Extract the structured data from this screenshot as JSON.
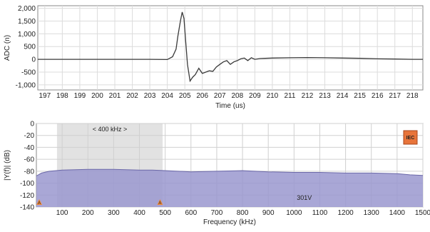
{
  "chart_data": [
    {
      "type": "line",
      "xlabel": "Time (us)",
      "ylabel": "ADC (n)",
      "xlim": [
        196.6,
        218.6
      ],
      "ylim": [
        -1200,
        2100
      ],
      "xticks": [
        197,
        198,
        199,
        200,
        201,
        202,
        203,
        204,
        205,
        206,
        207,
        208,
        209,
        210,
        211,
        212,
        213,
        214,
        215,
        216,
        217,
        218
      ],
      "yticks": [
        -1000,
        -500,
        0,
        500,
        1000,
        1500,
        2000
      ],
      "ytick_labels": [
        "-1,000",
        "-500",
        "0",
        "500",
        "1,000",
        "1,500",
        "2,000"
      ],
      "grid": true,
      "series": [
        {
          "color": "#3a3a3a",
          "x": [
            196.6,
            200,
            203,
            204.0,
            204.3,
            204.5,
            204.6,
            204.75,
            204.85,
            204.95,
            205.05,
            205.15,
            205.3,
            205.45,
            205.6,
            205.8,
            206.0,
            206.2,
            206.4,
            206.6,
            206.8,
            207.0,
            207.2,
            207.4,
            207.6,
            207.8,
            208.0,
            208.2,
            208.4,
            208.6,
            208.8,
            209.0,
            209.3,
            209.6,
            210,
            211,
            212,
            213,
            214,
            215,
            216,
            217,
            218,
            218.6
          ],
          "y": [
            0,
            0,
            0,
            -10,
            100,
            400,
            900,
            1500,
            1850,
            1600,
            700,
            -200,
            -850,
            -700,
            -600,
            -350,
            -550,
            -500,
            -450,
            -470,
            -300,
            -200,
            -100,
            -50,
            -200,
            -100,
            -50,
            20,
            50,
            -50,
            60,
            0,
            30,
            40,
            50,
            60,
            70,
            60,
            50,
            40,
            20,
            10,
            0,
            0
          ]
        }
      ]
    },
    {
      "type": "area",
      "xlabel": "Frequency (kHz)",
      "ylabel": "|Y(f)| (dB)",
      "xlim": [
        0,
        1500
      ],
      "ylim": [
        -140,
        0
      ],
      "xticks": [
        100,
        200,
        300,
        400,
        500,
        600,
        700,
        800,
        900,
        1000,
        1100,
        1200,
        1300,
        1400,
        1500
      ],
      "yticks": [
        0,
        -20,
        -40,
        -60,
        -80,
        -100,
        -120,
        -140
      ],
      "grid": true,
      "highlight_band": {
        "x": [
          80,
          490
        ],
        "label": "< 400 kHz >",
        "label_color": "#b59adb"
      },
      "series": [
        {
          "fill_color": "#9a98cf",
          "line_color": "#6b68a8",
          "x": [
            0,
            20,
            50,
            100,
            200,
            300,
            400,
            450,
            500,
            600,
            700,
            800,
            900,
            1000,
            1100,
            1200,
            1300,
            1400,
            1450,
            1500
          ],
          "y": [
            -88,
            -83,
            -80,
            -78,
            -77,
            -77,
            -78,
            -78,
            -79,
            -81,
            -80,
            -79,
            -81,
            -82,
            -82,
            -83,
            -83,
            -84,
            -86,
            -87
          ]
        }
      ],
      "markers": [
        {
          "label": "A",
          "x": 0,
          "y": -140,
          "color": "#f08a3a"
        },
        {
          "label": "A",
          "x": 480,
          "y": -140,
          "color": "#f08a3a"
        }
      ],
      "annotation": {
        "text": "301V",
        "x": 1040,
        "y": -128,
        "color": "#f08a3a"
      },
      "badge": {
        "text": "IEC",
        "color": "#e8743a"
      }
    }
  ]
}
